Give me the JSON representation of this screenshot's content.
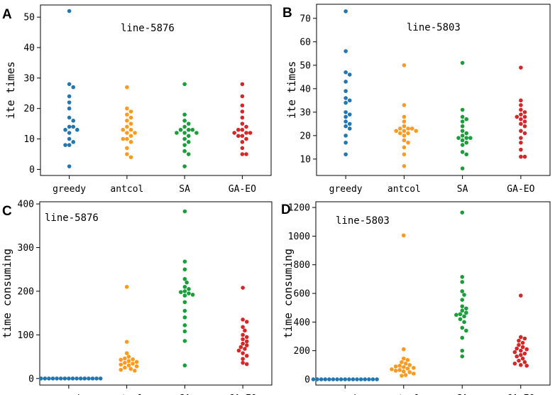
{
  "colors": {
    "greedy": "#1f77b4",
    "antcol": "#ff9a1f",
    "SA": "#1a9e3a",
    "GA-EO": "#d62728"
  },
  "chart_data": [
    {
      "panel": "A",
      "type": "scatter",
      "subtype": "swarm",
      "annotation": "line-5876",
      "xlabel": "",
      "ylabel": "ite times",
      "categories": [
        "greedy",
        "antcol",
        "SA",
        "GA-EO"
      ],
      "ylim": [
        -2,
        54
      ],
      "yticks": [
        0,
        10,
        20,
        30,
        40,
        50
      ],
      "series": [
        {
          "name": "greedy",
          "values": [
            52,
            28,
            27,
            24,
            22,
            20,
            17,
            16,
            14,
            14,
            13,
            13,
            12,
            10,
            9,
            8,
            8,
            1
          ]
        },
        {
          "name": "antcol",
          "values": [
            27,
            20,
            19,
            18,
            17,
            16,
            15,
            14,
            13,
            13,
            12,
            12,
            11,
            10,
            10,
            9,
            7,
            5,
            4
          ]
        },
        {
          "name": "SA",
          "values": [
            28,
            18,
            16,
            15,
            14,
            13,
            13,
            13,
            12,
            12,
            12,
            11,
            10,
            9,
            8,
            6,
            5,
            1
          ]
        },
        {
          "name": "GA-EO",
          "values": [
            28,
            24,
            21,
            19,
            17,
            15,
            14,
            13,
            13,
            12,
            12,
            12,
            11,
            11,
            10,
            9,
            7,
            5,
            5
          ]
        }
      ]
    },
    {
      "panel": "B",
      "type": "scatter",
      "subtype": "swarm",
      "annotation": "line-5803",
      "xlabel": "",
      "ylabel": "ite times",
      "categories": [
        "greedy",
        "antcol",
        "SA",
        "GA-EO"
      ],
      "ylim": [
        3,
        76
      ],
      "yticks": [
        10,
        20,
        30,
        40,
        50,
        60,
        70
      ],
      "series": [
        {
          "name": "greedy",
          "values": [
            73,
            56,
            47,
            46,
            43,
            39,
            36,
            35,
            34,
            30,
            29,
            28,
            26,
            25,
            24,
            23,
            20,
            17,
            12
          ]
        },
        {
          "name": "antcol",
          "values": [
            50,
            33,
            28,
            26,
            24,
            23,
            23,
            23,
            22,
            22,
            22,
            21,
            21,
            20,
            18,
            17,
            15,
            12,
            7
          ]
        },
        {
          "name": "SA",
          "values": [
            51,
            31,
            28,
            27,
            26,
            24,
            22,
            21,
            20,
            19,
            19,
            19,
            18,
            17,
            16,
            13,
            12,
            6
          ]
        },
        {
          "name": "GA-EO",
          "values": [
            49,
            35,
            33,
            31,
            30,
            29,
            28,
            28,
            27,
            26,
            25,
            24,
            22,
            21,
            19,
            17,
            14,
            11,
            11
          ]
        }
      ]
    },
    {
      "panel": "C",
      "type": "scatter",
      "subtype": "swarm",
      "annotation": "line-5876",
      "xlabel": "",
      "ylabel": "time consuming",
      "categories": [
        "greedy",
        "antcol",
        "SA",
        "GA-EO"
      ],
      "ylim": [
        -15,
        405
      ],
      "yticks": [
        0,
        100,
        200,
        300,
        400
      ],
      "series": [
        {
          "name": "greedy",
          "values": [
            0,
            0,
            0,
            0,
            0,
            0,
            0,
            0,
            0,
            0,
            0,
            0,
            0,
            0,
            0,
            0
          ]
        },
        {
          "name": "antcol",
          "values": [
            210,
            84,
            58,
            50,
            46,
            44,
            43,
            40,
            38,
            36,
            34,
            32,
            30,
            28,
            25,
            22,
            20,
            18
          ]
        },
        {
          "name": "SA",
          "values": [
            383,
            268,
            250,
            228,
            220,
            210,
            205,
            200,
            198,
            195,
            192,
            190,
            175,
            155,
            140,
            122,
            108,
            86,
            30
          ]
        },
        {
          "name": "GA-EO",
          "values": [
            208,
            135,
            130,
            118,
            110,
            100,
            95,
            90,
            85,
            80,
            76,
            72,
            68,
            64,
            58,
            52,
            45,
            36,
            33
          ]
        }
      ]
    },
    {
      "panel": "D",
      "type": "scatter",
      "subtype": "swarm",
      "annotation": "line-5803",
      "xlabel": "",
      "ylabel": "time consuming",
      "categories": [
        "greedy",
        "antcol",
        "SA",
        "GA-EO"
      ],
      "ylim": [
        -40,
        1240
      ],
      "yticks": [
        0,
        200,
        400,
        600,
        800,
        1000,
        1200
      ],
      "series": [
        {
          "name": "greedy",
          "values": [
            0,
            0,
            0,
            0,
            0,
            0,
            0,
            0,
            0,
            0,
            0,
            0,
            0,
            0,
            0,
            0,
            0
          ]
        },
        {
          "name": "antcol",
          "values": [
            1005,
            210,
            145,
            135,
            120,
            110,
            100,
            95,
            90,
            85,
            80,
            75,
            70,
            65,
            60,
            55,
            50,
            40,
            30,
            25
          ]
        },
        {
          "name": "SA",
          "values": [
            1165,
            715,
            680,
            615,
            590,
            555,
            510,
            495,
            480,
            465,
            455,
            450,
            440,
            420,
            400,
            360,
            340,
            290,
            200,
            160
          ]
        },
        {
          "name": "GA-EO",
          "values": [
            585,
            295,
            285,
            270,
            255,
            240,
            225,
            215,
            210,
            200,
            190,
            180,
            170,
            160,
            145,
            130,
            120,
            110,
            100,
            95
          ]
        }
      ]
    }
  ]
}
